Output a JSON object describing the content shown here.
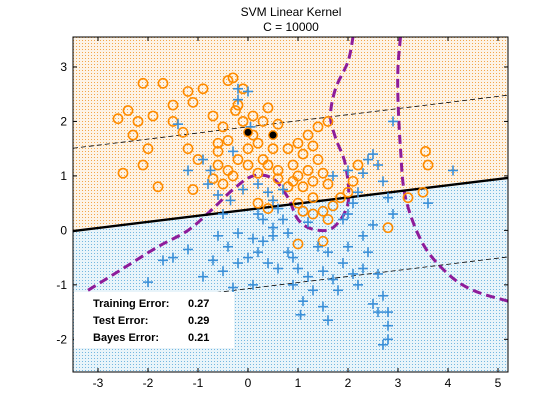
{
  "chart_data": {
    "type": "scatter",
    "title": "SVM Linear Kernel",
    "subtitle": "C = 10000",
    "xlim": [
      -3.5,
      5.2
    ],
    "ylim": [
      -2.6,
      3.55
    ],
    "xticks": [
      "-3",
      "-2",
      "-1",
      "0",
      "1",
      "2",
      "3",
      "4",
      "5"
    ],
    "yticks": [
      "-2",
      "-1",
      "0",
      "1",
      "2",
      "3"
    ],
    "grid": false,
    "colors": {
      "orange": "#ff8c00",
      "blue": "#3a8fd8",
      "purple": "#8e1c9a",
      "orange_region": "#fbe3c2",
      "blue_region": "#d3ebf5"
    },
    "decision_boundary": {
      "slope": 0.112,
      "intercept": 0.38
    },
    "margin_upper": {
      "slope": 0.112,
      "intercept": 1.9
    },
    "margin_lower": {
      "slope": 0.112,
      "intercept": -1.07
    },
    "bayes_boundary": [
      [
        [
          -3.2,
          -1.1
        ],
        [
          -2.5,
          -0.7
        ],
        [
          -1.8,
          -0.3
        ],
        [
          -1.2,
          0.0
        ],
        [
          -0.7,
          0.4
        ],
        [
          -0.3,
          0.75
        ],
        [
          0.1,
          1.0
        ],
        [
          0.5,
          0.95
        ],
        [
          0.8,
          0.6
        ],
        [
          1.0,
          0.2
        ],
        [
          1.3,
          0.02
        ],
        [
          1.7,
          0.05
        ],
        [
          2.0,
          0.5
        ],
        [
          1.95,
          1.2
        ],
        [
          1.75,
          1.7
        ],
        [
          1.65,
          2.1
        ],
        [
          1.75,
          2.6
        ],
        [
          2.0,
          3.1
        ],
        [
          2.1,
          3.55
        ]
      ],
      [
        [
          3.05,
          3.55
        ],
        [
          3.0,
          3.0
        ],
        [
          3.0,
          2.4
        ],
        [
          3.05,
          1.5
        ],
        [
          3.15,
          0.6
        ],
        [
          3.5,
          -0.25
        ],
        [
          4.0,
          -0.8
        ],
        [
          4.5,
          -1.1
        ],
        [
          5.2,
          -1.3
        ]
      ]
    ],
    "series": [
      {
        "type": "circle",
        "points": [
          [
            -2.6,
            2.05
          ],
          [
            -2.4,
            2.2
          ],
          [
            -2.3,
            1.75
          ],
          [
            -2.2,
            2.0
          ],
          [
            -2.1,
            2.7
          ],
          [
            -2.0,
            1.5
          ],
          [
            -2.1,
            1.2
          ],
          [
            -2.5,
            1.05
          ],
          [
            -1.9,
            2.1
          ],
          [
            -1.7,
            2.7
          ],
          [
            -1.5,
            2.3
          ],
          [
            -1.5,
            2.0
          ],
          [
            -1.3,
            1.8
          ],
          [
            -1.2,
            2.55
          ],
          [
            -1.1,
            2.35
          ],
          [
            -1.2,
            1.5
          ],
          [
            -1.0,
            1.3
          ],
          [
            -0.9,
            2.6
          ],
          [
            -0.7,
            2.1
          ],
          [
            -0.6,
            1.6
          ],
          [
            -0.5,
            1.9
          ],
          [
            -0.4,
            1.65
          ],
          [
            -0.3,
            2.8
          ],
          [
            -0.2,
            2.3
          ],
          [
            -0.1,
            2.6
          ],
          [
            -0.1,
            2.0
          ],
          [
            0.0,
            1.5
          ],
          [
            0.1,
            2.1
          ],
          [
            0.2,
            1.6
          ],
          [
            0.3,
            2.0
          ],
          [
            0.4,
            2.25
          ],
          [
            0.5,
            1.5
          ],
          [
            0.6,
            1.95
          ],
          [
            -0.6,
            1.2
          ],
          [
            -0.4,
            1.1
          ],
          [
            -0.2,
            1.3
          ],
          [
            0.0,
            1.2
          ],
          [
            0.2,
            1.05
          ],
          [
            0.3,
            1.3
          ],
          [
            0.4,
            1.2
          ],
          [
            0.6,
            1.1
          ],
          [
            0.8,
            1.5
          ],
          [
            0.9,
            1.2
          ],
          [
            1.0,
            1.6
          ],
          [
            1.1,
            1.4
          ],
          [
            1.2,
            1.75
          ],
          [
            1.3,
            1.55
          ],
          [
            1.0,
            1.0
          ],
          [
            1.1,
            0.8
          ],
          [
            1.2,
            1.1
          ],
          [
            1.3,
            0.9
          ],
          [
            1.4,
            1.3
          ],
          [
            1.5,
            1.05
          ],
          [
            1.6,
            0.85
          ],
          [
            0.8,
            0.8
          ],
          [
            1.0,
            0.5
          ],
          [
            1.1,
            0.35
          ],
          [
            1.3,
            0.6
          ],
          [
            1.5,
            0.35
          ],
          [
            1.6,
            0.2
          ],
          [
            1.7,
            0.45
          ],
          [
            1.4,
            1.9
          ],
          [
            1.6,
            2.0
          ],
          [
            -1.1,
            0.75
          ],
          [
            -1.8,
            0.8
          ],
          [
            -0.7,
            0.95
          ],
          [
            -0.5,
            0.85
          ],
          [
            -0.3,
            1.0
          ],
          [
            0.2,
            0.5
          ],
          [
            0.4,
            0.4
          ],
          [
            -0.4,
            2.75
          ],
          [
            -0.25,
            2.2
          ],
          [
            0.9,
            0.9
          ],
          [
            1.3,
            0.3
          ],
          [
            1.5,
            -0.2
          ],
          [
            1.0,
            -0.25
          ],
          [
            2.0,
            0.7
          ],
          [
            2.1,
            0.9
          ],
          [
            2.2,
            1.2
          ],
          [
            3.2,
            0.6
          ],
          [
            3.5,
            0.7
          ],
          [
            3.6,
            1.2
          ],
          [
            3.55,
            1.45
          ],
          [
            2.8,
            0.05
          ],
          [
            1.85,
            0.6
          ],
          [
            0.6,
            0.95
          ],
          [
            -0.6,
            1.45
          ],
          [
            0.1,
            1.75
          ]
        ]
      },
      {
        "type": "plus",
        "points": [
          [
            -1.4,
            1.95
          ],
          [
            -1.2,
            1.1
          ],
          [
            -0.9,
            1.3
          ],
          [
            -0.75,
            1.1
          ],
          [
            -0.3,
            1.45
          ],
          [
            -0.2,
            2.4
          ],
          [
            -0.2,
            2.6
          ],
          [
            0.0,
            2.55
          ],
          [
            0.05,
            1.9
          ],
          [
            -0.8,
            0.85
          ],
          [
            -0.6,
            0.65
          ],
          [
            -0.35,
            0.55
          ],
          [
            -0.1,
            0.75
          ],
          [
            0.2,
            0.85
          ],
          [
            0.4,
            0.7
          ],
          [
            0.6,
            0.4
          ],
          [
            0.5,
            0.55
          ],
          [
            0.3,
            0.2
          ],
          [
            0.7,
            0.2
          ],
          [
            -0.5,
            0.3
          ],
          [
            -0.2,
            -0.05
          ],
          [
            0.1,
            -0.15
          ],
          [
            0.3,
            -0.2
          ],
          [
            0.5,
            -0.1
          ],
          [
            0.8,
            -0.05
          ],
          [
            0.8,
            -0.4
          ],
          [
            0.6,
            -0.7
          ],
          [
            0.4,
            -0.6
          ],
          [
            0.2,
            -0.4
          ],
          [
            -0.2,
            -0.6
          ],
          [
            -0.4,
            -0.3
          ],
          [
            -0.5,
            -0.75
          ],
          [
            -0.7,
            -0.55
          ],
          [
            -0.9,
            -0.85
          ],
          [
            -1.2,
            -0.35
          ],
          [
            -1.5,
            -0.5
          ],
          [
            -1.7,
            -0.55
          ],
          [
            -2.0,
            -0.95
          ],
          [
            -0.3,
            -1.05
          ],
          [
            0.1,
            -1.0
          ],
          [
            1.0,
            -0.7
          ],
          [
            0.9,
            -1.0
          ],
          [
            1.1,
            -1.3
          ],
          [
            1.2,
            -0.85
          ],
          [
            1.3,
            -1.1
          ],
          [
            1.5,
            -0.75
          ],
          [
            1.7,
            -0.9
          ],
          [
            1.8,
            -1.1
          ],
          [
            1.9,
            -0.6
          ],
          [
            2.0,
            -0.3
          ],
          [
            2.1,
            -0.8
          ],
          [
            2.2,
            -1.0
          ],
          [
            2.3,
            -0.7
          ],
          [
            2.4,
            -0.4
          ],
          [
            2.6,
            -0.8
          ],
          [
            2.7,
            -1.2
          ],
          [
            2.5,
            -1.35
          ],
          [
            2.6,
            -1.5
          ],
          [
            2.8,
            -1.5
          ],
          [
            2.8,
            -1.75
          ],
          [
            2.8,
            -2.0
          ],
          [
            2.7,
            -2.1
          ],
          [
            1.05,
            -1.55
          ],
          [
            1.6,
            -1.65
          ],
          [
            1.5,
            -1.4
          ],
          [
            2.0,
            0.3
          ],
          [
            2.2,
            0.7
          ],
          [
            2.3,
            1.05
          ],
          [
            2.4,
            1.3
          ],
          [
            2.5,
            1.4
          ],
          [
            2.6,
            1.2
          ],
          [
            2.7,
            0.9
          ],
          [
            2.8,
            0.6
          ],
          [
            2.9,
            0.3
          ],
          [
            2.5,
            0.1
          ],
          [
            2.3,
            -0.1
          ],
          [
            2.1,
            0.5
          ],
          [
            1.9,
            0.2
          ],
          [
            2.0,
            1.1
          ],
          [
            1.7,
            1.0
          ],
          [
            4.1,
            1.1
          ],
          [
            3.6,
            0.5
          ],
          [
            2.9,
            2.0
          ],
          [
            0.5,
            0.05
          ],
          [
            1.4,
            -0.3
          ],
          [
            0.2,
            0.3
          ],
          [
            -0.6,
            -0.1
          ],
          [
            0.7,
            0.75
          ],
          [
            1.2,
            0.15
          ],
          [
            0.0,
            -0.5
          ],
          [
            0.9,
            -0.5
          ],
          [
            1.6,
            -0.4
          ]
        ]
      },
      {
        "type": "dot",
        "points": [
          [
            0.0,
            1.8
          ],
          [
            0.5,
            1.75
          ]
        ]
      }
    ],
    "annotations": [
      {
        "label": "Training Error:",
        "value": "0.27"
      },
      {
        "label": "Test Error:",
        "value": "0.29"
      },
      {
        "label": "Bayes Error:",
        "value": "0.21"
      }
    ]
  }
}
